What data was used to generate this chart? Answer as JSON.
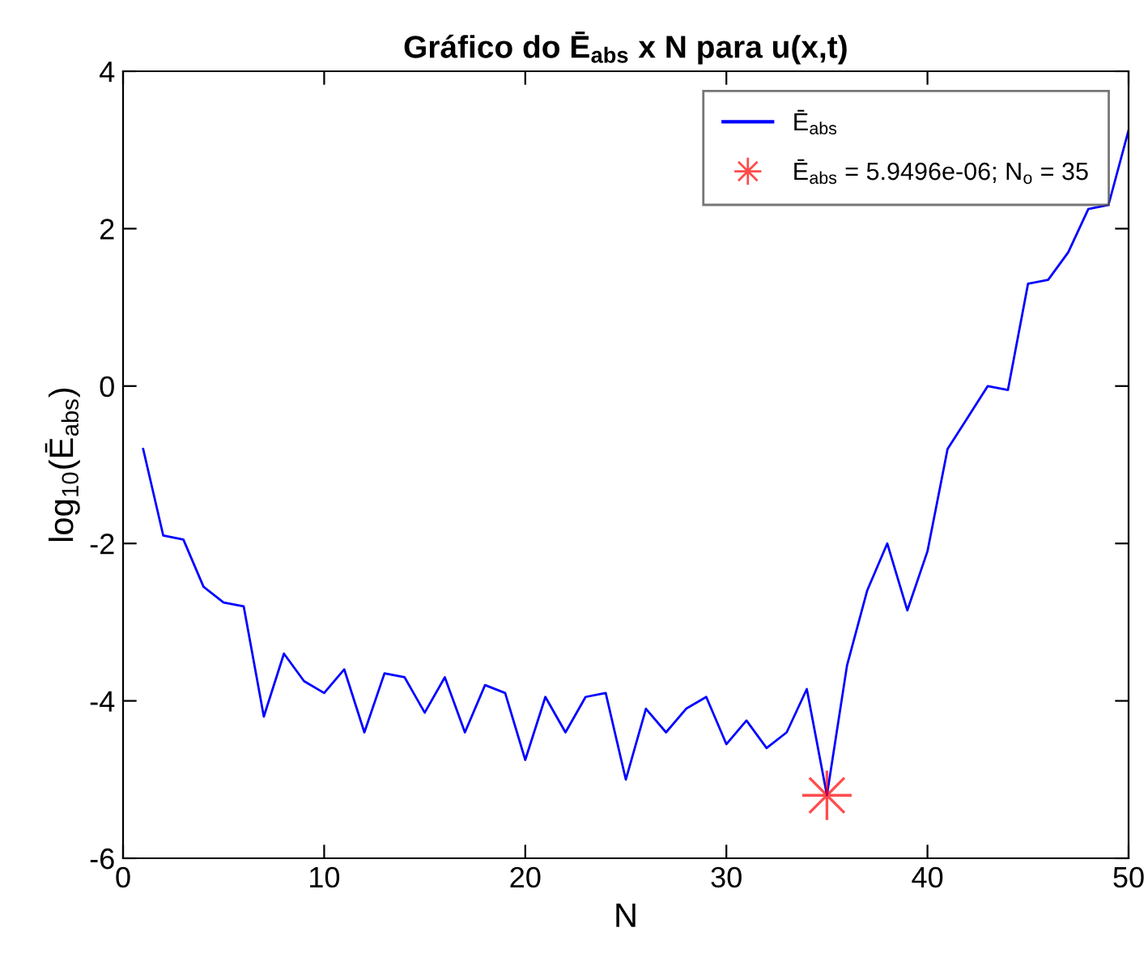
{
  "chart_data": {
    "type": "line",
    "title": "Gráfico do Ē$_{abs}$ x N para u(x,t)",
    "xlabel": "N",
    "ylabel": "log$_{10}$(Ē$_{abs}$)",
    "x": [
      1,
      2,
      3,
      4,
      5,
      6,
      7,
      8,
      9,
      10,
      11,
      12,
      13,
      14,
      15,
      16,
      17,
      18,
      19,
      20,
      21,
      22,
      23,
      24,
      25,
      26,
      27,
      28,
      29,
      30,
      31,
      32,
      33,
      34,
      35,
      36,
      37,
      38,
      39,
      40,
      41,
      42,
      43,
      44,
      45,
      46,
      47,
      48,
      49,
      50
    ],
    "series": [
      {
        "name": "Ē$_{abs}$",
        "color": "#0000ff",
        "marker": "none",
        "values": [
          -0.8,
          -1.9,
          -1.95,
          -2.55,
          -2.75,
          -2.8,
          -4.2,
          -3.4,
          -3.75,
          -3.9,
          -3.6,
          -4.4,
          -3.65,
          -3.7,
          -4.15,
          -3.7,
          -4.4,
          -3.8,
          -3.9,
          -4.75,
          -3.95,
          -4.4,
          -3.95,
          -3.9,
          -5.0,
          -4.1,
          -4.4,
          -4.1,
          -3.95,
          -4.55,
          -4.25,
          -4.6,
          -4.4,
          -3.85,
          -5.2,
          -3.55,
          -2.6,
          -2.0,
          -2.85,
          -2.1,
          -0.8,
          -0.4,
          0.0,
          -0.05,
          1.3,
          1.35,
          1.7,
          2.25,
          2.3,
          3.25
        ]
      },
      {
        "name": "Ē$_{abs}$ = 5.9496e-06; N$_{o}$ = 35",
        "color": "#ff0000",
        "type": "scatter",
        "marker": "star",
        "x": [
          35
        ],
        "values": [
          -5.2
        ]
      }
    ],
    "xlim": [
      0,
      50
    ],
    "ylim": [
      -6,
      4
    ],
    "xticks": [
      0,
      10,
      20,
      30,
      40,
      50
    ],
    "yticks": [
      -6,
      -4,
      -2,
      0,
      2,
      4
    ],
    "grid": false,
    "legend": "top right"
  }
}
